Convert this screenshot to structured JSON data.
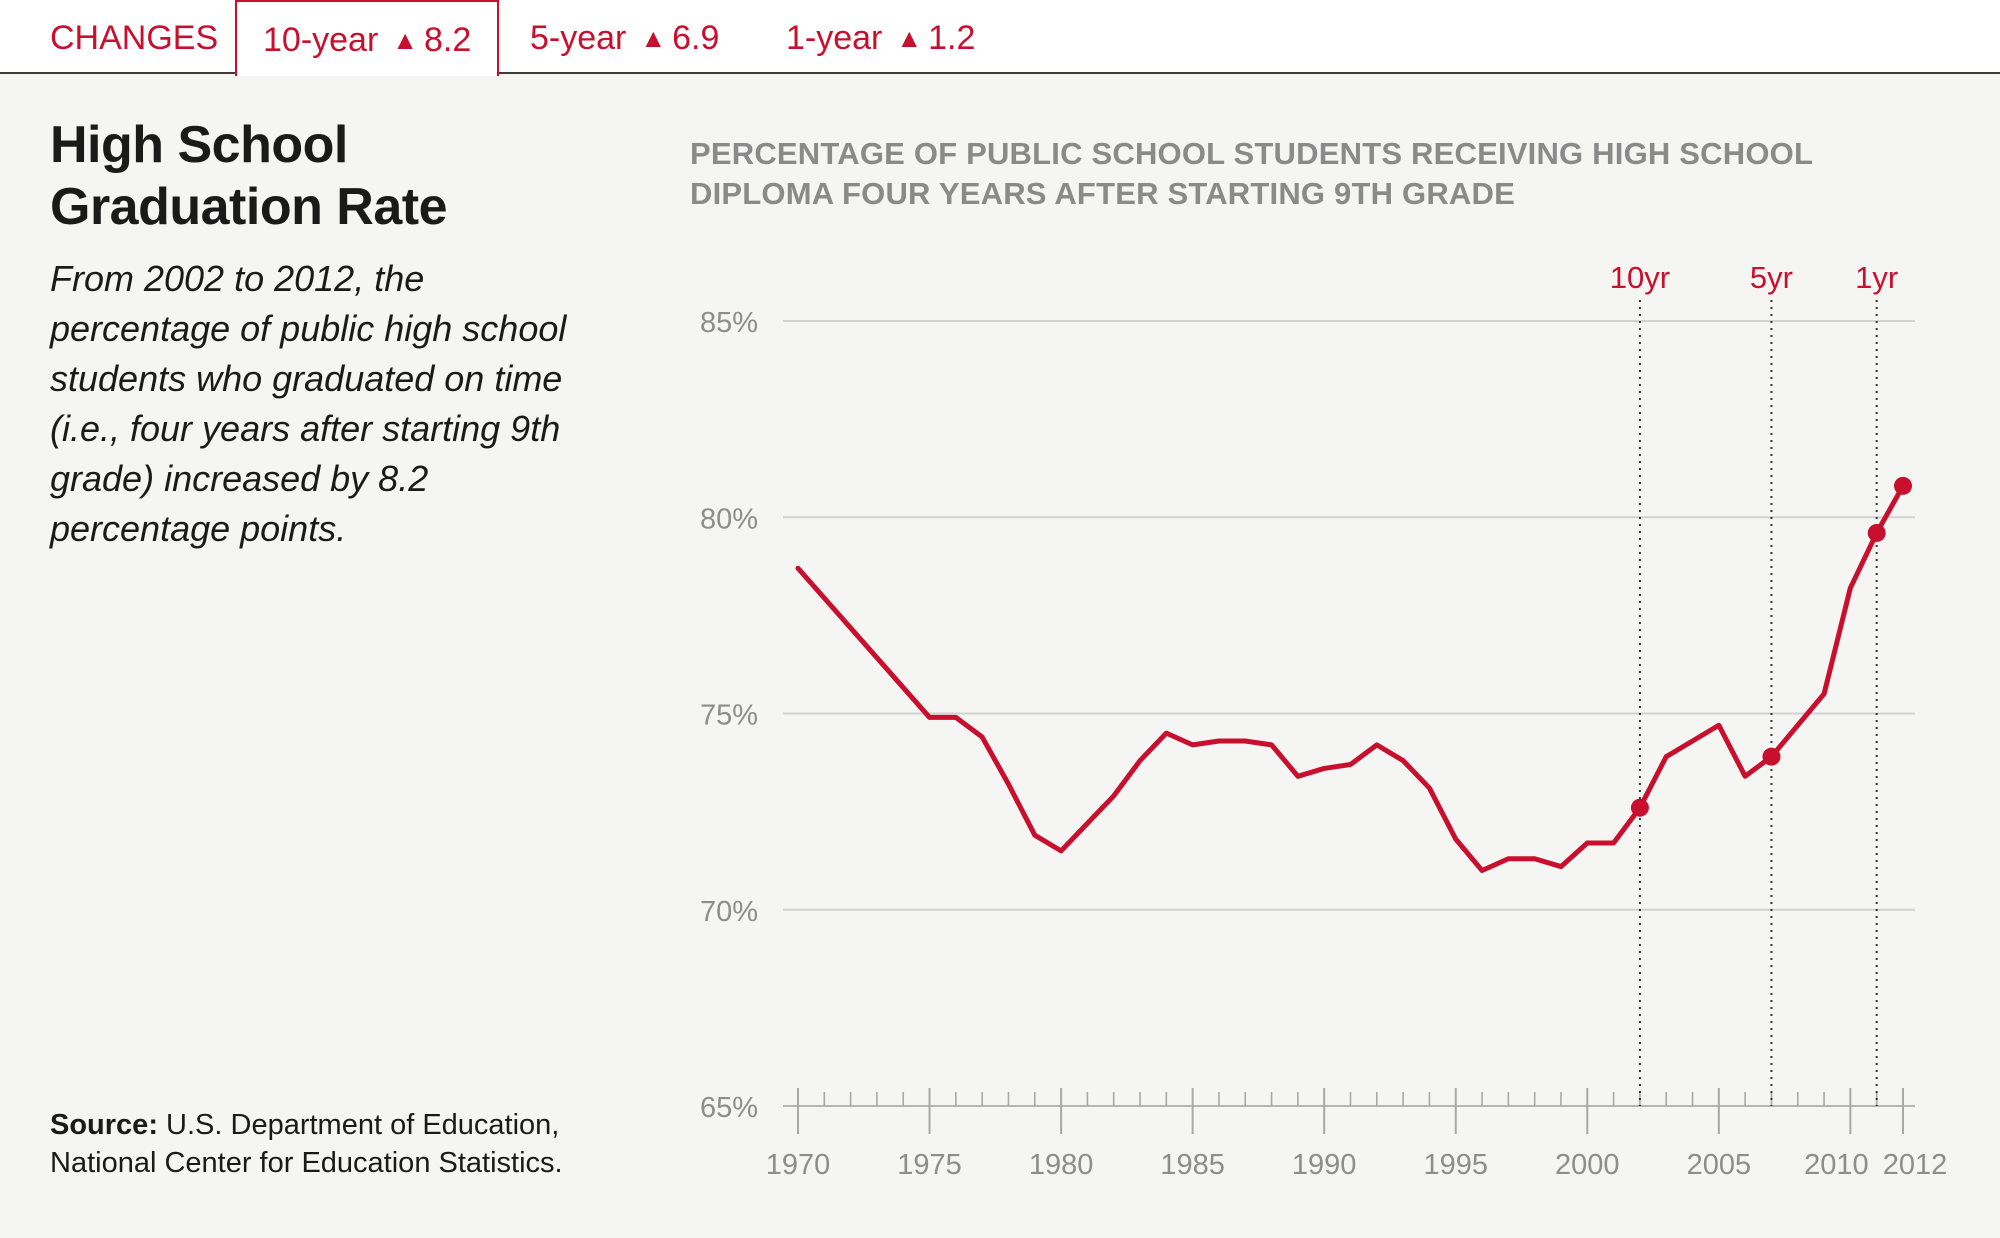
{
  "changes": {
    "label": "CHANGES",
    "tabs": [
      {
        "period": "10-year",
        "delta": "8.2",
        "active": true
      },
      {
        "period": "5-year",
        "delta": "6.9",
        "active": false
      },
      {
        "period": "1-year",
        "delta": "1.2",
        "active": false
      }
    ]
  },
  "sidebar": {
    "title": "High School Graduation Rate",
    "description": "From 2002 to 2012, the percentage of public high school students who graduated on time (i.e., four years after starting 9th grade) increased by 8.2 percentage points.",
    "source_label": "Source:",
    "source_text": "U.S. Department of Education, National Center for Education Statistics."
  },
  "colors": {
    "accent": "#c8102e",
    "grid": "#d2d2d2",
    "axis": "#8d8d8d",
    "background": "#f5f5f4"
  },
  "chart_data": {
    "type": "line",
    "title": "PERCENTAGE OF PUBLIC SCHOOL STUDENTS RECEIVING HIGH SCHOOL DIPLOMA FOUR YEARS AFTER STARTING 9TH GRADE",
    "xlabel": "",
    "ylabel": "",
    "xlim": [
      1970,
      2012
    ],
    "ylim": [
      65,
      85
    ],
    "yticks": [
      65,
      70,
      75,
      80,
      85
    ],
    "ytick_labels": [
      "65%",
      "70%",
      "75%",
      "80%",
      "85%"
    ],
    "xticks": [
      1970,
      1975,
      1980,
      1985,
      1990,
      1995,
      2000,
      2005,
      2010,
      2012
    ],
    "xtick_labels": [
      "1970",
      "1975",
      "1980",
      "1985",
      "1990",
      "1995",
      "2000",
      "2005",
      "2010",
      "2012"
    ],
    "grid": true,
    "series": [
      {
        "x": [
          1970,
          1975,
          1976,
          1977,
          1978,
          1979,
          1980,
          1981,
          1982,
          1983,
          1984,
          1985,
          1986,
          1987,
          1988,
          1989,
          1990,
          1991,
          1992,
          1993,
          1994,
          1995,
          1996,
          1997,
          1998,
          1999,
          2000,
          2001,
          2002,
          2003,
          2004,
          2005,
          2006,
          2007,
          2008,
          2009,
          2010,
          2011,
          2012
        ],
        "y": [
          78.7,
          74.9,
          74.9,
          74.4,
          73.2,
          71.9,
          71.5,
          72.2,
          72.9,
          73.8,
          74.5,
          74.2,
          74.3,
          74.3,
          74.2,
          73.4,
          73.6,
          73.7,
          74.2,
          73.8,
          73.1,
          71.8,
          71.0,
          71.3,
          71.3,
          71.1,
          71.7,
          71.7,
          72.6,
          73.9,
          74.3,
          74.7,
          73.4,
          73.9,
          74.7,
          75.5,
          78.2,
          79.6,
          80.8
        ]
      }
    ],
    "highlighted_points": [
      {
        "x": 2002,
        "y": 72.6
      },
      {
        "x": 2007,
        "y": 73.9
      },
      {
        "x": 2011,
        "y": 79.6
      },
      {
        "x": 2012,
        "y": 80.8
      }
    ],
    "markers": [
      {
        "x": 2002,
        "label": "10yr"
      },
      {
        "x": 2007,
        "label": "5yr"
      },
      {
        "x": 2011,
        "label": "1yr"
      }
    ]
  }
}
